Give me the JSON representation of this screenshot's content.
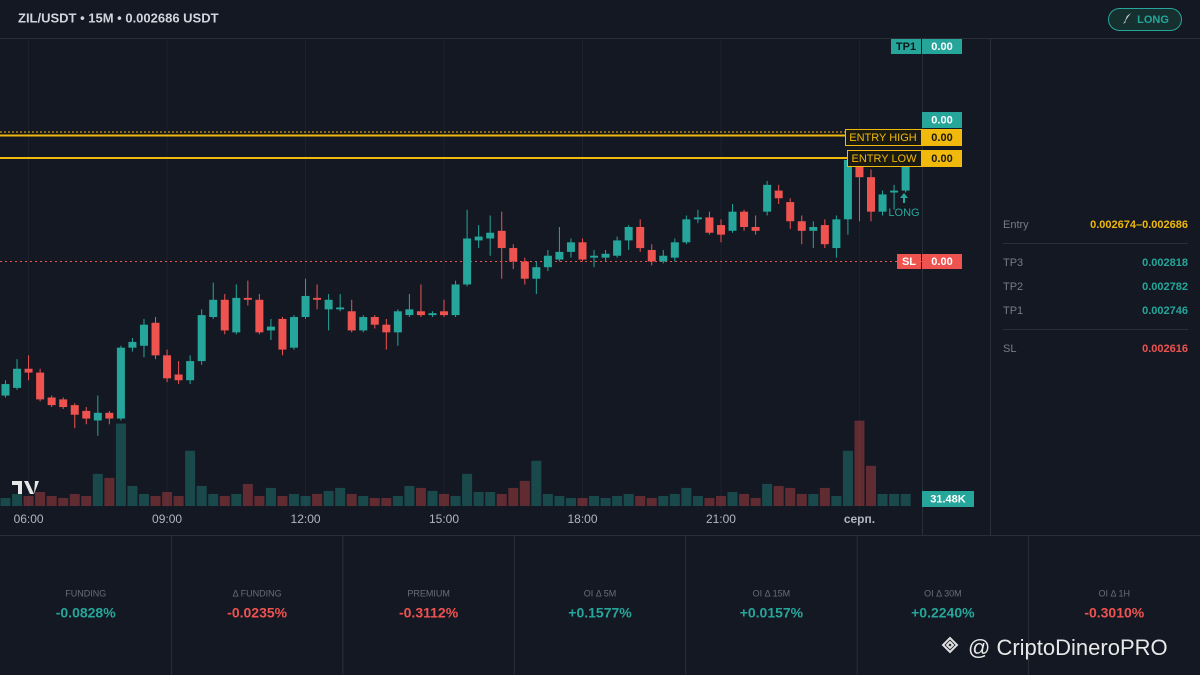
{
  "header": {
    "title": "ZIL/USDT • 15M • 0.002686 USDT",
    "button": "LONG"
  },
  "chart_data": {
    "type": "candlestick",
    "x_labels": [
      "06:00",
      "09:00",
      "12:00",
      "15:00",
      "18:00",
      "21:00",
      "серп."
    ],
    "ylim": [
      0.00249,
      0.00274
    ],
    "up_color": "#26a69a",
    "down_color": "#ef5350",
    "open": [
      0.00255,
      0.002554,
      0.002564,
      0.002562,
      0.002549,
      0.002548,
      0.002545,
      0.002542,
      0.002537,
      0.002541,
      0.002538,
      0.002575,
      0.002576,
      0.002588,
      0.002571,
      0.002561,
      0.002558,
      0.002568,
      0.002591,
      0.0026,
      0.002583,
      0.002601,
      0.0026,
      0.002584,
      0.00259,
      0.002575,
      0.002591,
      0.002601,
      0.002595,
      0.002595,
      0.002594,
      0.002584,
      0.002591,
      0.002587,
      0.002583,
      0.002592,
      0.002594,
      0.002592,
      0.002594,
      0.002592,
      0.002608,
      0.002631,
      0.002632,
      0.002636,
      0.002627,
      0.00262,
      0.002611,
      0.002617,
      0.002621,
      0.002625,
      0.00263,
      0.002622,
      0.002622,
      0.002623,
      0.002631,
      0.002638,
      0.002626,
      0.00262,
      0.002622,
      0.00263,
      0.002642,
      0.002643,
      0.002639,
      0.002636,
      0.002646,
      0.002638,
      0.002646,
      0.002657,
      0.002651,
      0.002641,
      0.002636,
      0.002639,
      0.002627,
      0.002642,
      0.002673,
      0.002664,
      0.002646,
      0.002656,
      0.002657
    ],
    "high": [
      0.002558,
      0.002569,
      0.002571,
      0.002564,
      0.00255,
      0.002549,
      0.002546,
      0.002544,
      0.00255,
      0.002542,
      0.002576,
      0.00258,
      0.00259,
      0.002591,
      0.002574,
      0.002568,
      0.002571,
      0.002595,
      0.002609,
      0.002603,
      0.002608,
      0.00261,
      0.002603,
      0.00259,
      0.002591,
      0.002592,
      0.002611,
      0.002608,
      0.002603,
      0.002603,
      0.0026,
      0.002592,
      0.002592,
      0.00259,
      0.002595,
      0.002603,
      0.002608,
      0.002594,
      0.0026,
      0.00261,
      0.002647,
      0.002639,
      0.002644,
      0.002646,
      0.002629,
      0.002622,
      0.00262,
      0.002626,
      0.002638,
      0.002632,
      0.002632,
      0.002626,
      0.002626,
      0.002633,
      0.002639,
      0.002642,
      0.002629,
      0.002626,
      0.002632,
      0.002644,
      0.002647,
      0.002646,
      0.002642,
      0.00265,
      0.002647,
      0.002644,
      0.002662,
      0.00266,
      0.002653,
      0.002644,
      0.002641,
      0.002642,
      0.002644,
      0.002678,
      0.002676,
      0.002668,
      0.002657,
      0.00266,
      0.002674
    ],
    "low": [
      0.002549,
      0.002553,
      0.002558,
      0.002547,
      0.002544,
      0.002543,
      0.002533,
      0.002535,
      0.002529,
      0.002535,
      0.002537,
      0.002573,
      0.00257,
      0.002569,
      0.002557,
      0.002556,
      0.002556,
      0.002566,
      0.00259,
      0.002582,
      0.002582,
      0.002597,
      0.002582,
      0.002579,
      0.002571,
      0.002574,
      0.00259,
      0.002595,
      0.002584,
      0.002594,
      0.002583,
      0.002583,
      0.002585,
      0.002574,
      0.002576,
      0.002591,
      0.002591,
      0.002591,
      0.002591,
      0.002591,
      0.002607,
      0.002627,
      0.002623,
      0.002611,
      0.002616,
      0.002608,
      0.002603,
      0.002615,
      0.00262,
      0.002622,
      0.00262,
      0.002617,
      0.00262,
      0.002622,
      0.002626,
      0.002625,
      0.002618,
      0.002619,
      0.00262,
      0.002629,
      0.00264,
      0.002634,
      0.00263,
      0.002635,
      0.002636,
      0.002634,
      0.002644,
      0.00265,
      0.002637,
      0.002629,
      0.002627,
      0.002627,
      0.002622,
      0.002634,
      0.002641,
      0.002641,
      0.002644,
      0.002647,
      0.002656
    ],
    "close": [
      0.002556,
      0.002564,
      0.002562,
      0.002548,
      0.002545,
      0.002544,
      0.00254,
      0.002538,
      0.002541,
      0.002538,
      0.002575,
      0.002578,
      0.002587,
      0.002571,
      0.002559,
      0.002558,
      0.002568,
      0.002592,
      0.0026,
      0.002584,
      0.002601,
      0.0026,
      0.002583,
      0.002586,
      0.002574,
      0.002591,
      0.002602,
      0.0026,
      0.0026,
      0.002596,
      0.002584,
      0.002591,
      0.002587,
      0.002583,
      0.002594,
      0.002595,
      0.002592,
      0.002593,
      0.002592,
      0.002608,
      0.002632,
      0.002633,
      0.002635,
      0.002627,
      0.00262,
      0.002611,
      0.002617,
      0.002623,
      0.002625,
      0.00263,
      0.002621,
      0.002623,
      0.002624,
      0.002631,
      0.002638,
      0.002627,
      0.00262,
      0.002623,
      0.00263,
      0.002642,
      0.002643,
      0.002635,
      0.002634,
      0.002646,
      0.002638,
      0.002636,
      0.00266,
      0.002653,
      0.002641,
      0.002636,
      0.002638,
      0.002629,
      0.002642,
      0.002673,
      0.002664,
      0.002646,
      0.002655,
      0.002657,
      0.00267
    ],
    "volume": {
      "vlim": [
        0,
        240000
      ],
      "last_label": "31.48K",
      "values": [
        20960,
        31440,
        26200,
        36680,
        26200,
        20960,
        31440,
        26200,
        83840,
        73360,
        214840,
        52400,
        31440,
        26200,
        36680,
        26200,
        144100,
        52400,
        31440,
        26200,
        31440,
        57640,
        26200,
        47160,
        26200,
        31440,
        26200,
        31440,
        39300,
        47160,
        31440,
        26200,
        20960,
        20960,
        26200,
        52400,
        47160,
        39300,
        31440,
        26200,
        83840,
        36680,
        36680,
        31440,
        47160,
        65500,
        117900,
        31440,
        26200,
        20960,
        20960,
        26200,
        20960,
        26200,
        31440,
        26200,
        20960,
        26200,
        31440,
        47160,
        26200,
        20960,
        26200,
        36680,
        31440,
        20960,
        57640,
        52400,
        47160,
        31440,
        31440,
        47160,
        26200,
        144100,
        222700,
        104800,
        31440,
        31440,
        31480
      ]
    },
    "annotation": "LONG",
    "price_tags": [
      {
        "label": "TP1",
        "value": "0.00"
      },
      {
        "value": "0.00"
      },
      {
        "label": "ENTRY HIGH",
        "value": "0.00"
      },
      {
        "label": "ENTRY LOW",
        "value": "0.00"
      },
      {
        "label": "SL",
        "value": "0.00"
      }
    ]
  },
  "sidebar": {
    "rows": [
      {
        "label": "Entry",
        "value": "0.002674–0.002686"
      },
      {
        "label": "TP3",
        "value": "0.002818"
      },
      {
        "label": "TP2",
        "value": "0.002782"
      },
      {
        "label": "TP1",
        "value": "0.002746"
      },
      {
        "label": "SL",
        "value": "0.002616"
      }
    ]
  },
  "stats": [
    {
      "label": "FUNDING",
      "value": "-0.0828%",
      "color": "#26a69a"
    },
    {
      "label": "Δ FUNDING",
      "value": "-0.0235%",
      "color": "#ef5350"
    },
    {
      "label": "PREMIUM",
      "value": "-0.3112%",
      "color": "#ef5350"
    },
    {
      "label": "OI Δ 5M",
      "value": "+0.1577%",
      "color": "#26a69a"
    },
    {
      "label": "OI Δ 15M",
      "value": "+0.0157%",
      "color": "#26a69a"
    },
    {
      "label": "OI Δ 30M",
      "value": "+0.2240%",
      "color": "#26a69a"
    },
    {
      "label": "OI Δ 1H",
      "value": "-0.3010%",
      "color": "#ef5350"
    }
  ],
  "watermark": "@ CriptoDineroPRO"
}
